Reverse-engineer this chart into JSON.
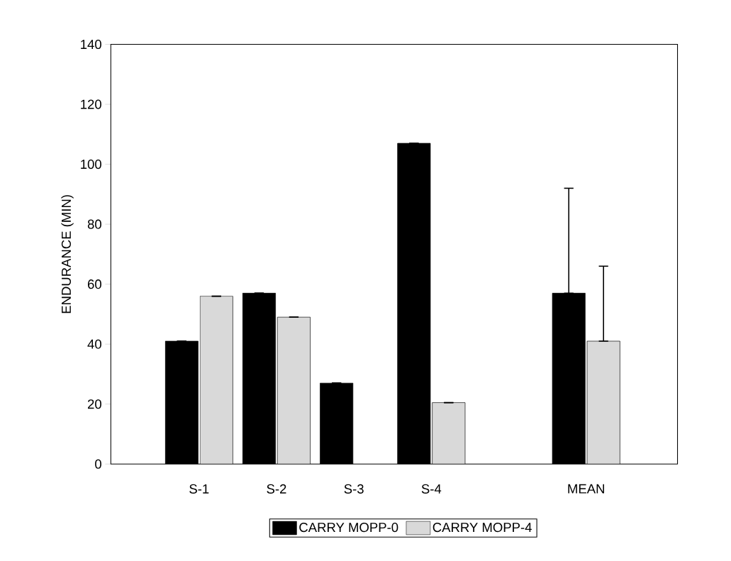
{
  "chart_data": {
    "type": "bar",
    "ylabel": "ENDURANCE (MIN)",
    "categories": [
      "S-1",
      "S-2",
      "S-3",
      "S-4",
      null,
      "MEAN"
    ],
    "series": [
      {
        "name": "CARRY MOPP-0",
        "color": "#000000",
        "values": [
          41,
          57,
          27,
          107,
          null,
          57
        ],
        "errors": [
          null,
          null,
          null,
          null,
          null,
          [
            57,
            92
          ]
        ]
      },
      {
        "name": "CARRY MOPP-4",
        "color": "#d9d9d9",
        "values": [
          56,
          49,
          null,
          20.5,
          null,
          41
        ],
        "errors": [
          null,
          null,
          null,
          null,
          null,
          [
            41,
            66
          ]
        ]
      }
    ],
    "ylim": [
      0,
      140
    ],
    "yticks": [
      0,
      20,
      40,
      60,
      80,
      100,
      120,
      140
    ],
    "legend": "bottom"
  }
}
